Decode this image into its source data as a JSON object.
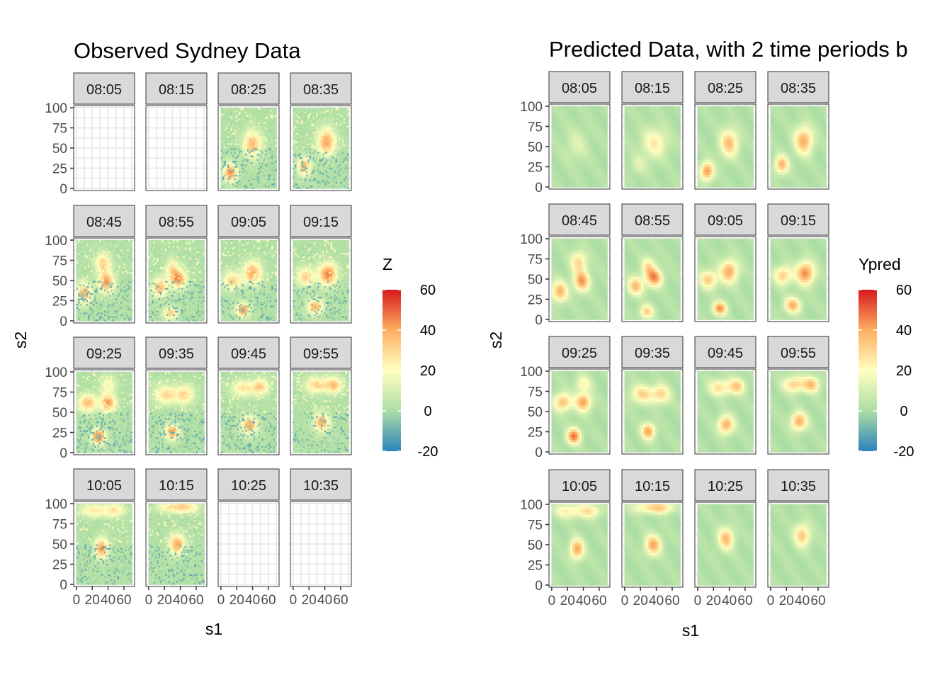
{
  "chart_data": [
    {
      "type": "heatmap",
      "title": "Observed Sydney Data",
      "xlabel": "s1",
      "ylabel": "s2",
      "legend_title": "Z",
      "legend_placement": "right",
      "panels": [
        "08:05",
        "08:15",
        "08:25",
        "08:35",
        "08:45",
        "08:55",
        "09:05",
        "09:15",
        "09:25",
        "09:35",
        "09:45",
        "09:55",
        "10:05",
        "10:15",
        "10:25",
        "10:35"
      ],
      "panels_with_data": [
        "08:25",
        "08:35",
        "08:45",
        "08:55",
        "09:05",
        "09:15",
        "09:25",
        "09:35",
        "09:45",
        "09:55",
        "10:05",
        "10:15"
      ],
      "xlim": [
        0,
        70
      ],
      "ylim": [
        0,
        100
      ],
      "x_ticks": [
        "0",
        "20",
        "40",
        "60"
      ],
      "y_ticks": [
        "0",
        "25",
        "50",
        "75",
        "100"
      ],
      "color_scale": {
        "min": -20,
        "max": 60,
        "ticks": [
          "-20",
          "0",
          "20",
          "40",
          "60"
        ]
      }
    },
    {
      "type": "heatmap",
      "title": "Predicted Data, with 2 time periods b",
      "xlabel": "s1",
      "ylabel": "s2",
      "legend_title": "Ypred",
      "legend_placement": "right",
      "panels": [
        "08:05",
        "08:15",
        "08:25",
        "08:35",
        "08:45",
        "08:55",
        "09:05",
        "09:15",
        "09:25",
        "09:35",
        "09:45",
        "09:55",
        "10:05",
        "10:15",
        "10:25",
        "10:35"
      ],
      "panels_with_data": [
        "08:05",
        "08:15",
        "08:25",
        "08:35",
        "08:45",
        "08:55",
        "09:05",
        "09:15",
        "09:25",
        "09:35",
        "09:45",
        "09:55",
        "10:05",
        "10:15",
        "10:25",
        "10:35"
      ],
      "xlim": [
        0,
        70
      ],
      "ylim": [
        0,
        100
      ],
      "x_ticks": [
        "0",
        "20",
        "40",
        "60"
      ],
      "y_ticks": [
        "0",
        "25",
        "50",
        "75",
        "100"
      ],
      "color_scale": {
        "min": -20,
        "max": 60,
        "ticks": [
          "-20",
          "0",
          "20",
          "40",
          "60"
        ]
      }
    }
  ],
  "palette": {
    "colorbar_stops": [
      "#2B83BA",
      "#ABDDA4",
      "#FFFFBF",
      "#FDAE61",
      "#D7191C"
    ],
    "strip_fill": "#D9D9D9",
    "panel_border": "#333333",
    "grid": "#EBEBEB"
  }
}
